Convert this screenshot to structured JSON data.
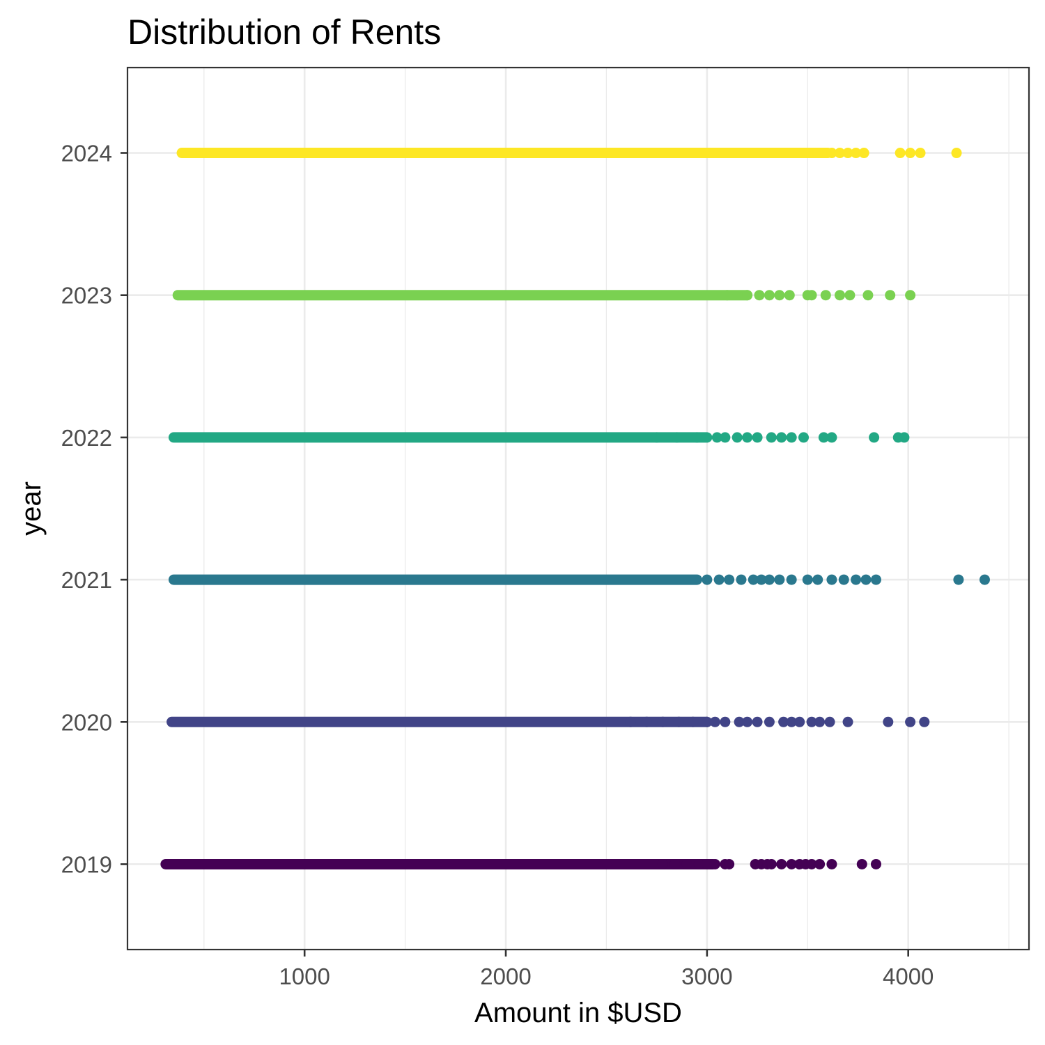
{
  "chart_data": {
    "type": "scatter",
    "title": "Distribution of Rents",
    "xlabel": "Amount in $USD",
    "ylabel": "year",
    "xlim": [
      120,
      4600
    ],
    "x_ticks": [
      1000,
      2000,
      3000,
      4000
    ],
    "x_minor_ticks": [
      500,
      1500,
      2500,
      3500,
      4500
    ],
    "ylim": [
      2018.4,
      2024.6
    ],
    "y_ticks": [
      2019,
      2020,
      2021,
      2022,
      2023,
      2024
    ],
    "y_tick_labels": [
      "2019",
      "2020",
      "2021",
      "2022",
      "2023",
      "2024"
    ],
    "grid": true,
    "legend": "none",
    "series": [
      {
        "year": 2019,
        "color": "#440154",
        "dense_range": [
          310,
          3030
        ],
        "values": [
          2780,
          2840,
          2900,
          2960,
          3000,
          3040,
          3090,
          3110,
          3240,
          3270,
          3300,
          3320,
          3370,
          3420,
          3460,
          3490,
          3520,
          3560,
          3620,
          3770,
          3840
        ]
      },
      {
        "year": 2020,
        "color": "#414487",
        "dense_range": [
          340,
          3000
        ],
        "values": [
          2620,
          2700,
          2780,
          2860,
          2930,
          3000,
          3040,
          3090,
          3160,
          3200,
          3250,
          3310,
          3380,
          3420,
          3460,
          3520,
          3560,
          3610,
          3700,
          3900,
          4010,
          4080
        ]
      },
      {
        "year": 2021,
        "color": "#2a788e",
        "dense_range": [
          350,
          2950
        ],
        "values": [
          3000,
          3060,
          3110,
          3170,
          3230,
          3270,
          3310,
          3360,
          3420,
          3500,
          3550,
          3620,
          3680,
          3740,
          3790,
          3840,
          4250,
          4380
        ]
      },
      {
        "year": 2022,
        "color": "#22a884",
        "dense_range": [
          350,
          3000
        ],
        "values": [
          2750,
          2850,
          2950,
          3050,
          3090,
          3150,
          3200,
          3250,
          3320,
          3370,
          3420,
          3480,
          3580,
          3620,
          3830,
          3950,
          3980
        ]
      },
      {
        "year": 2023,
        "color": "#7ad151",
        "dense_range": [
          370,
          3200
        ],
        "values": [
          3100,
          3200,
          3260,
          3310,
          3360,
          3410,
          3500,
          3520,
          3590,
          3660,
          3710,
          3800,
          3910,
          4010
        ]
      },
      {
        "year": 2024,
        "color": "#fde725",
        "dense_range": [
          390,
          3600
        ],
        "values": [
          3550,
          3620,
          3660,
          3700,
          3740,
          3780,
          3960,
          4010,
          4060,
          4240
        ]
      }
    ]
  }
}
